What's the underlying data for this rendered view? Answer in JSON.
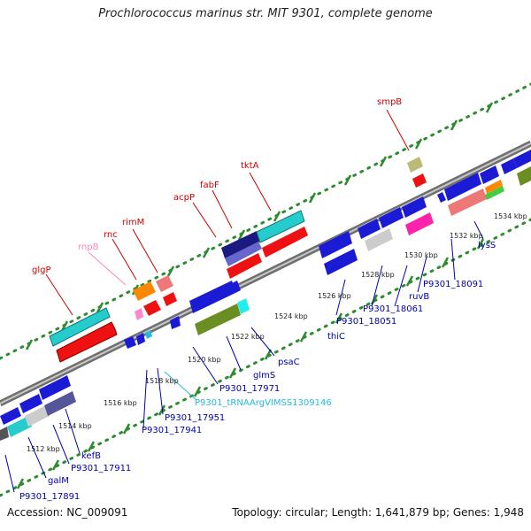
{
  "title": "Prochlorococcus marinus str. MIT 9301, complete genome",
  "footer": {
    "accession": "Accession: NC_009091",
    "summary": "Topology: circular; Length: 1,641,879 bp; Genes: 1,948"
  },
  "colors": {
    "backbone": "#8a8a8a",
    "dots": "#2e8b2e",
    "label_red": "#cc0000",
    "label_pink": "#ff88bb",
    "label_blue": "#0000aa",
    "label_cyan": "#22bbdd"
  },
  "scale": {
    "top": [
      "1524 kbp",
      "1526 kbp",
      "1528 kbp",
      "1530 kbp",
      "1532 kbp",
      "1534 kbp"
    ],
    "bottom": [
      "1512 kbp",
      "1514 kbp",
      "1516 kbp",
      "1518 kbp",
      "1520 kbp",
      "1522 kbp"
    ]
  },
  "gene_labels": {
    "smpB": "smpB",
    "tktA": "tktA",
    "fabF": "fabF",
    "acpP": "acpP",
    "rimM": "rimM",
    "rnc": "rnc",
    "rnpB": "rnpB",
    "glgP": "glgP",
    "lysS": "lysS",
    "P9301_18091": "P9301_18091",
    "ruvB": "ruvB",
    "P9301_18061": "P9301_18061",
    "P9301_18051": "P9301_18051",
    "thiC": "thiC",
    "psaC": "psaC",
    "glmS": "glmS",
    "P9301_17971": "P9301_17971",
    "trna": "P9301_tRNAArgVIMSS1309146",
    "P9301_17951": "P9301_17951",
    "P9301_17941": "P9301_17941",
    "kefB": "kefB",
    "P9301_17911": "P9301_17911",
    "galM": "galM",
    "P9301_17891": "P9301_17891"
  }
}
